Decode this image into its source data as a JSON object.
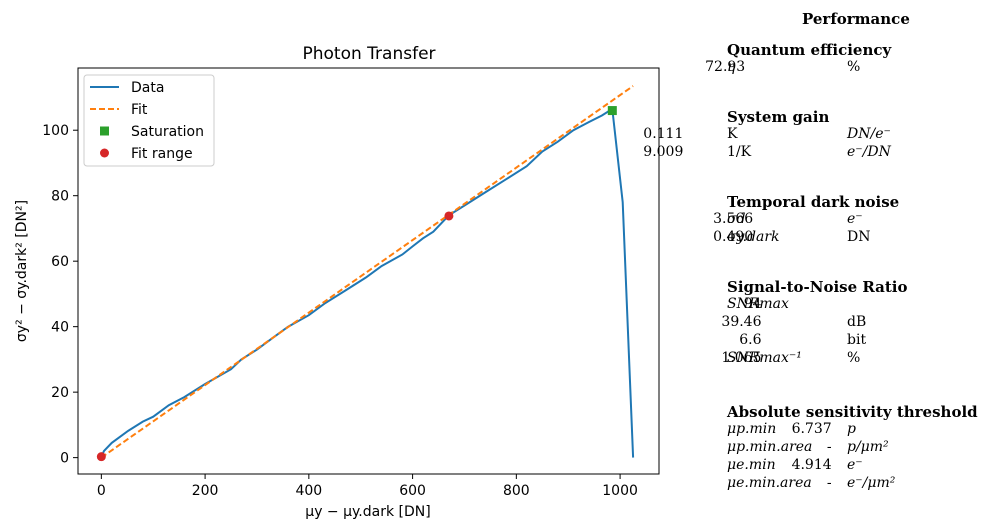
{
  "chart_data": {
    "type": "line",
    "title": "Photon Transfer",
    "xlabel": "μy − μy.dark [DN]",
    "ylabel": "σy² − σy.dark² [DN²]",
    "xlim": [
      -45,
      1075
    ],
    "ylim": [
      -5,
      119
    ],
    "xticks": [
      0,
      200,
      400,
      600,
      800,
      1000
    ],
    "yticks": [
      0,
      20,
      40,
      60,
      80,
      100
    ],
    "grid": false,
    "legend_position": "top-left",
    "series": [
      {
        "name": "Data",
        "color": "#1f77b4",
        "style": "solid",
        "points": [
          [
            0,
            0
          ],
          [
            5,
            2
          ],
          [
            20,
            4.5
          ],
          [
            50,
            8
          ],
          [
            80,
            11
          ],
          [
            100,
            12.5
          ],
          [
            130,
            16
          ],
          [
            160,
            18.5
          ],
          [
            200,
            22.5
          ],
          [
            250,
            27
          ],
          [
            270,
            30
          ],
          [
            300,
            33
          ],
          [
            330,
            36.5
          ],
          [
            360,
            40
          ],
          [
            400,
            43.5
          ],
          [
            430,
            47
          ],
          [
            470,
            51
          ],
          [
            510,
            55
          ],
          [
            540,
            58.5
          ],
          [
            580,
            62
          ],
          [
            600,
            64.5
          ],
          [
            620,
            67
          ],
          [
            640,
            69
          ],
          [
            670,
            74
          ],
          [
            700,
            77
          ],
          [
            740,
            81
          ],
          [
            780,
            85
          ],
          [
            820,
            89
          ],
          [
            850,
            93.5
          ],
          [
            880,
            96.5
          ],
          [
            910,
            100
          ],
          [
            940,
            102.5
          ],
          [
            965,
            104.5
          ],
          [
            985,
            106.5
          ],
          [
            1005,
            78
          ],
          [
            1025,
            0
          ]
        ]
      },
      {
        "name": "Fit",
        "color": "#ff7f0e",
        "style": "dashed",
        "points": [
          [
            0,
            0
          ],
          [
            1025,
            113.5
          ]
        ]
      },
      {
        "name": "Saturation",
        "color": "#2ca02c",
        "marker": "square",
        "points": [
          [
            985,
            106
          ]
        ]
      },
      {
        "name": "Fit range",
        "color": "#d62728",
        "marker": "circle",
        "points": [
          [
            0,
            0.3
          ],
          [
            670,
            73.8
          ]
        ]
      }
    ]
  },
  "performance": {
    "title": "Performance",
    "sections": [
      {
        "title": "Quantum efficiency",
        "rows": [
          {
            "label": "η",
            "value": "72.93",
            "unit": "%"
          }
        ]
      },
      {
        "title": "System gain",
        "rows": [
          {
            "label": "K",
            "value": "0.111",
            "unit": "DN/e⁻"
          },
          {
            "label": "1/K",
            "value": "9.009",
            "unit": "e⁻/DN"
          }
        ]
      },
      {
        "title": "Temporal dark noise",
        "rows": [
          {
            "label": "σd",
            "value": "3.566",
            "unit": "e⁻"
          },
          {
            "label": "σy.dark",
            "value": "0.490",
            "unit": "DN"
          }
        ]
      },
      {
        "title": "Signal-to-Noise Ratio",
        "rows": [
          {
            "label": "SNRmax",
            "value": "94",
            "unit": ""
          },
          {
            "label": "",
            "value": "39.46",
            "unit": "dB"
          },
          {
            "label": "",
            "value": "6.6",
            "unit": "bit"
          },
          {
            "label": "SNRmax⁻¹",
            "value": "1.065",
            "unit": "%"
          }
        ]
      },
      {
        "title": "Absolute sensitivity threshold",
        "rows": [
          {
            "label": "μp.min",
            "value": "6.737",
            "unit": "p"
          },
          {
            "label": "μp.min.area",
            "value": "-",
            "unit": "p/μm²"
          },
          {
            "label": "μe.min",
            "value": "4.914",
            "unit": "e⁻"
          },
          {
            "label": "μe.min.area",
            "value": "-",
            "unit": "e⁻/μm²"
          }
        ]
      }
    ]
  }
}
